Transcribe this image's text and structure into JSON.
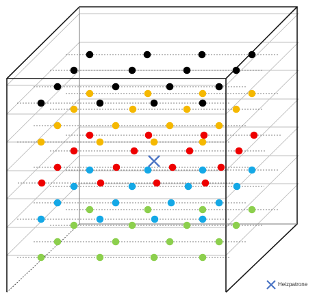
{
  "legend": {
    "label": "Heizpatrone",
    "marker": "x-cross-icon"
  },
  "colors": {
    "outline": "#1a1a1a",
    "layer_edge": "#bdbdbd",
    "dotted_line": "#555555",
    "black": "#000000",
    "yellow": "#f5b800",
    "red": "#ee0000",
    "blue": "#14a8e6",
    "green": "#8ccf4d",
    "heater": "#4a74c4"
  }
}
